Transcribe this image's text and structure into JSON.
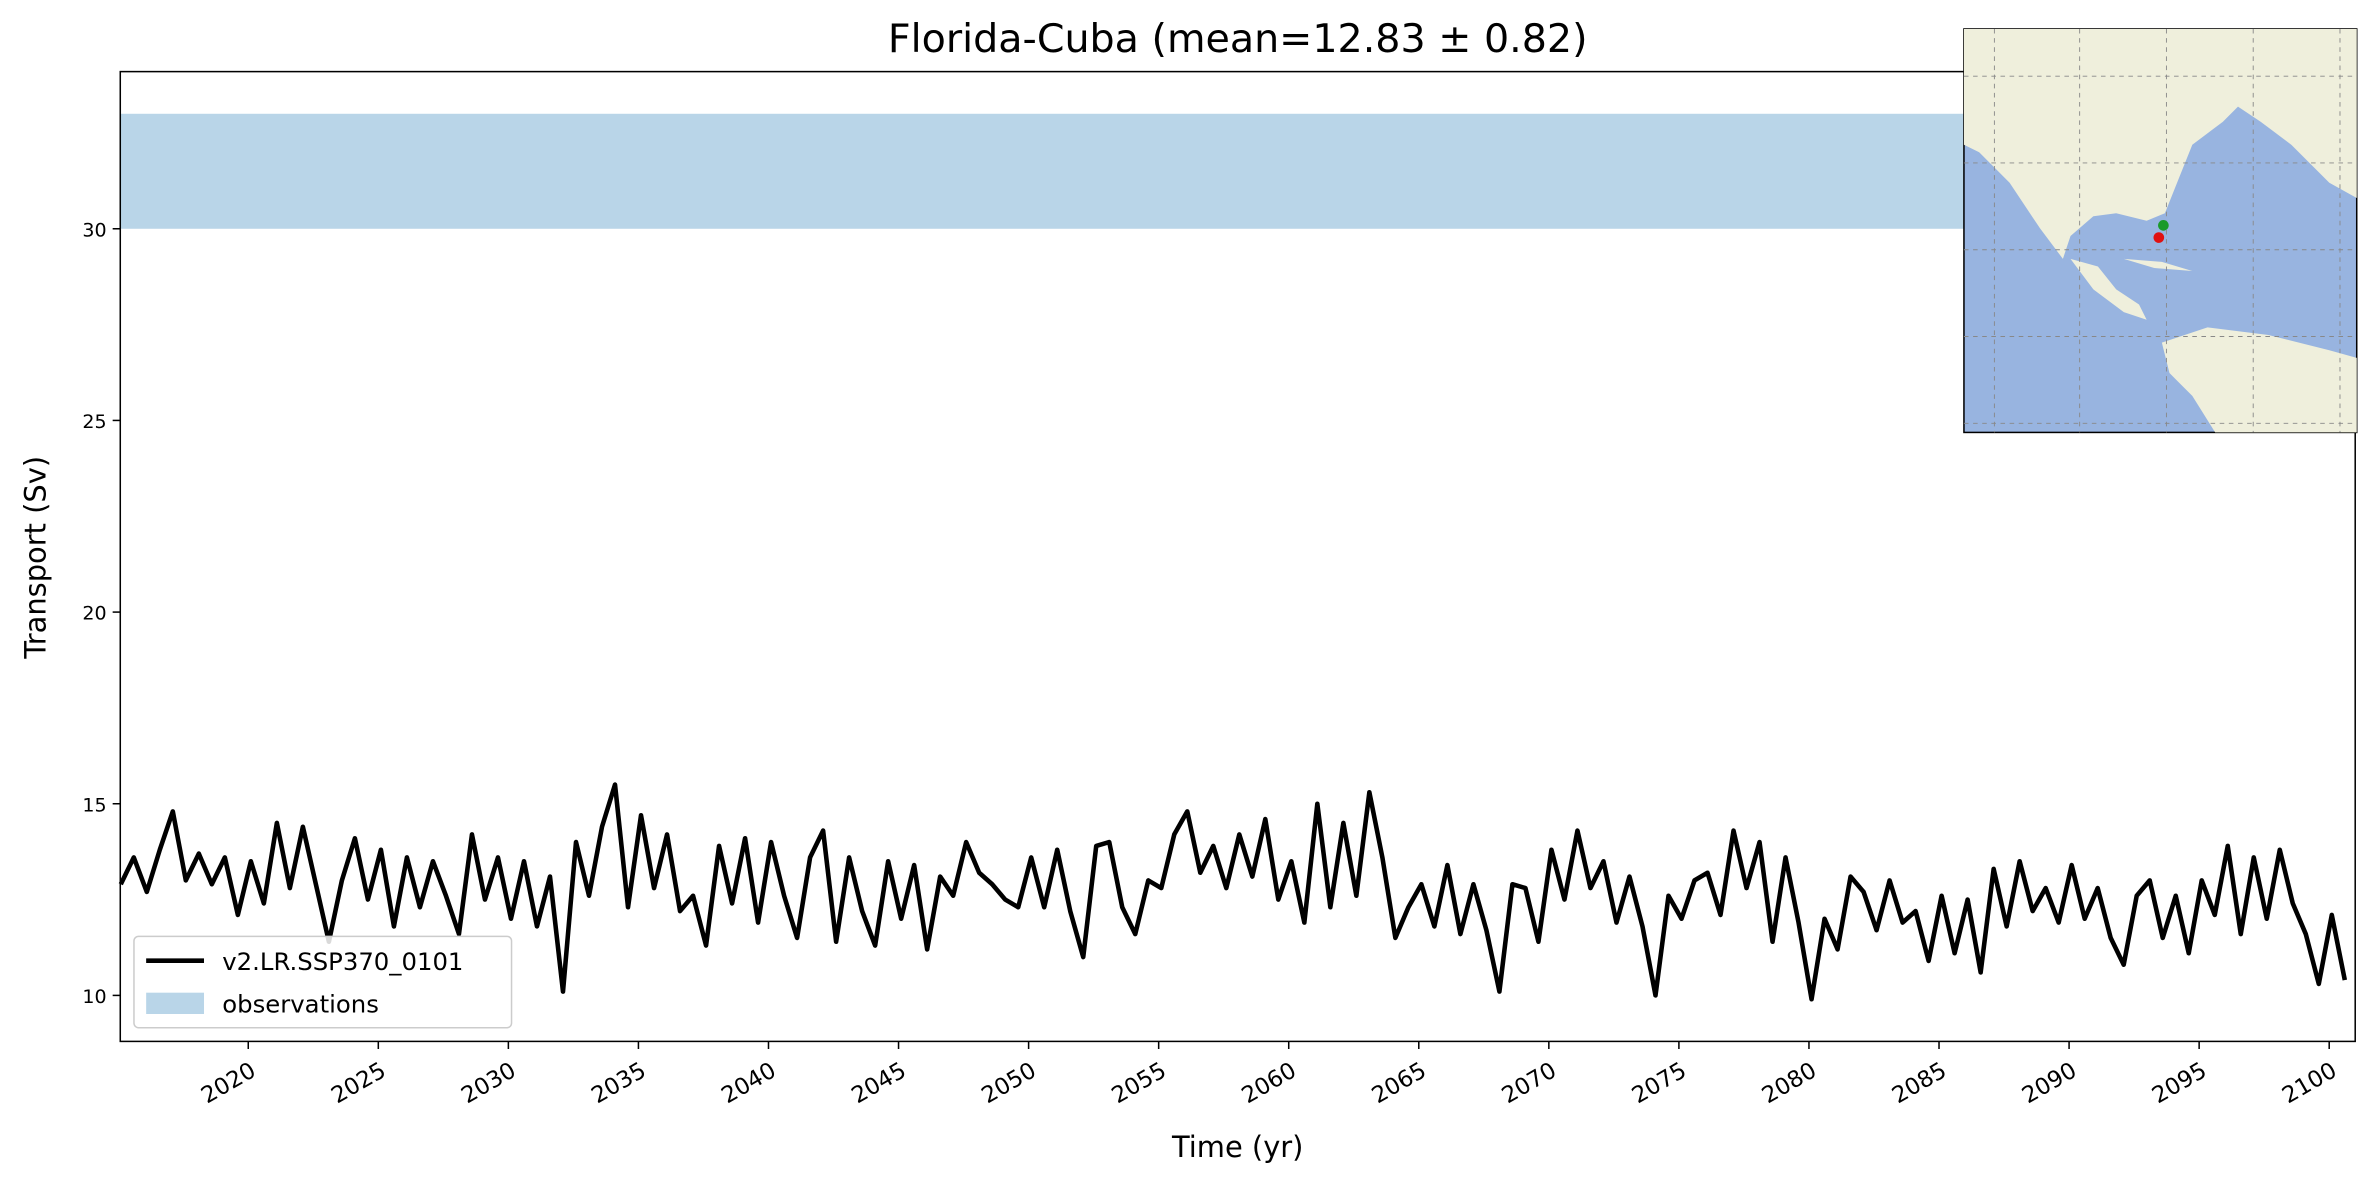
{
  "chart_data": {
    "type": "line",
    "title": "Florida-Cuba (mean=12.83 ± 0.82)",
    "xlabel": "Time (yr)",
    "ylabel": "Transport (Sv)",
    "xlim": [
      2015.08,
      2101.0
    ],
    "ylim": [
      8.8,
      34.1
    ],
    "xticks": [
      2020,
      2025,
      2030,
      2035,
      2040,
      2045,
      2050,
      2055,
      2060,
      2065,
      2070,
      2075,
      2080,
      2085,
      2090,
      2095,
      2100
    ],
    "yticks": [
      10,
      15,
      20,
      25,
      30
    ],
    "legend": "lower left",
    "observations": {
      "name": "observations",
      "color": "#b9d5e8",
      "y0": 30,
      "y1": 33
    },
    "x": [
      2015.1,
      2015.6,
      2016.1,
      2016.6,
      2017.1,
      2017.6,
      2018.1,
      2018.6,
      2019.1,
      2019.6,
      2020.1,
      2020.6,
      2021.1,
      2021.6,
      2022.1,
      2022.6,
      2023.1,
      2023.6,
      2024.1,
      2024.6,
      2025.1,
      2025.6,
      2026.1,
      2026.6,
      2027.1,
      2027.6,
      2028.1,
      2028.6,
      2029.1,
      2029.6,
      2030.1,
      2030.6,
      2031.1,
      2031.6,
      2032.1,
      2032.6,
      2033.1,
      2033.6,
      2034.1,
      2034.6,
      2035.1,
      2035.6,
      2036.1,
      2036.6,
      2037.1,
      2037.6,
      2038.1,
      2038.6,
      2039.1,
      2039.6,
      2040.1,
      2040.6,
      2041.1,
      2041.6,
      2042.1,
      2042.6,
      2043.1,
      2043.6,
      2044.1,
      2044.6,
      2045.1,
      2045.6,
      2046.1,
      2046.6,
      2047.1,
      2047.6,
      2048.1,
      2048.6,
      2049.1,
      2049.6,
      2050.1,
      2050.6,
      2051.1,
      2051.6,
      2052.1,
      2052.6,
      2053.1,
      2053.6,
      2054.1,
      2054.6,
      2055.1,
      2055.6,
      2056.1,
      2056.6,
      2057.1,
      2057.6,
      2058.1,
      2058.6,
      2059.1,
      2059.6,
      2060.1,
      2060.6,
      2061.1,
      2061.6,
      2062.1,
      2062.6,
      2063.1,
      2063.6,
      2064.1,
      2064.6,
      2065.1,
      2065.6,
      2066.1,
      2066.6,
      2067.1,
      2067.6,
      2068.1,
      2068.6,
      2069.1,
      2069.6,
      2070.1,
      2070.6,
      2071.1,
      2071.6,
      2072.1,
      2072.6,
      2073.1,
      2073.6,
      2074.1,
      2074.6,
      2075.1,
      2075.6,
      2076.1,
      2076.6,
      2077.1,
      2077.6,
      2078.1,
      2078.6,
      2079.1,
      2079.6,
      2080.1,
      2080.6,
      2081.1,
      2081.6,
      2082.1,
      2082.6,
      2083.1,
      2083.6,
      2084.1,
      2084.6,
      2085.1,
      2085.6,
      2086.1,
      2086.6,
      2087.1,
      2087.6,
      2088.1,
      2088.6,
      2089.1,
      2089.6,
      2090.1,
      2090.6,
      2091.1,
      2091.6,
      2092.1,
      2092.6,
      2093.1,
      2093.6,
      2094.1,
      2094.6,
      2095.1,
      2095.6,
      2096.1,
      2096.6,
      2097.1,
      2097.6,
      2098.1,
      2098.6,
      2099.1,
      2099.6,
      2100.1,
      2100.6
    ],
    "series": [
      {
        "name": "v2.LR.SSP370_0101",
        "color": "#000000",
        "values": [
          12.9,
          13.6,
          12.7,
          13.8,
          14.8,
          13.0,
          13.7,
          12.9,
          13.6,
          12.1,
          13.5,
          12.4,
          14.5,
          12.8,
          14.4,
          12.9,
          11.4,
          13.0,
          14.1,
          12.5,
          13.8,
          11.8,
          13.6,
          12.3,
          13.5,
          12.6,
          11.6,
          14.2,
          12.5,
          13.6,
          12.0,
          13.5,
          11.8,
          13.1,
          10.1,
          14.0,
          12.6,
          14.4,
          15.5,
          12.3,
          14.7,
          12.8,
          14.2,
          12.2,
          12.6,
          11.3,
          13.9,
          12.4,
          14.1,
          11.9,
          14.0,
          12.6,
          11.5,
          13.6,
          14.3,
          11.4,
          13.6,
          12.2,
          11.3,
          13.5,
          12.0,
          13.4,
          11.2,
          13.1,
          12.6,
          14.0,
          13.2,
          12.9,
          12.5,
          12.3,
          13.6,
          12.3,
          13.8,
          12.2,
          11.0,
          13.9,
          14.0,
          12.3,
          11.6,
          13.0,
          12.8,
          14.2,
          14.8,
          13.2,
          13.9,
          12.8,
          14.2,
          13.1,
          14.6,
          12.5,
          13.5,
          11.9,
          15.0,
          12.3,
          14.5,
          12.6,
          15.3,
          13.6,
          11.5,
          12.3,
          12.9,
          11.8,
          13.4,
          11.6,
          12.9,
          11.7,
          10.1,
          12.9,
          12.8,
          11.4,
          13.8,
          12.5,
          14.3,
          12.8,
          13.5,
          11.9,
          13.1,
          11.8,
          10.0,
          12.6,
          12.0,
          13.0,
          13.2,
          12.1,
          14.3,
          12.8,
          14.0,
          11.4,
          13.6,
          11.9,
          9.9,
          12.0,
          11.2,
          13.1,
          12.7,
          11.7,
          13.0,
          11.9,
          12.2,
          10.9,
          12.6,
          11.1,
          12.5,
          10.6,
          13.3,
          11.8,
          13.5,
          12.2,
          12.8,
          11.9,
          13.4,
          12.0,
          12.8,
          11.5,
          10.8,
          12.6,
          13.0,
          11.5,
          12.6,
          11.1,
          13.0,
          12.1,
          13.9,
          11.6,
          13.6,
          12.0,
          13.8,
          12.4,
          11.6,
          10.3,
          12.1,
          10.4
        ]
      }
    ]
  }
}
